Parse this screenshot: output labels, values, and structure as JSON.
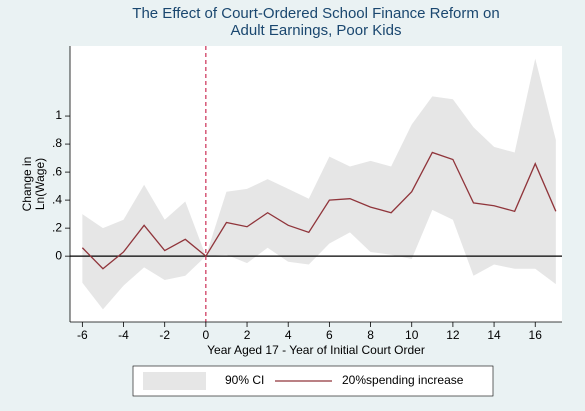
{
  "chart_data": {
    "type": "line",
    "title": [
      "The Effect of Court-Ordered School Finance Reform on",
      "Adult Earnings, Poor Kids"
    ],
    "xlabel": "Year Aged 17 - Year of Initial Court Order",
    "ylabel": [
      "Change in",
      "Ln(Wage)"
    ],
    "x": [
      -6,
      -5,
      -4,
      -3,
      -2,
      -1,
      0,
      1,
      2,
      3,
      4,
      5,
      6,
      7,
      8,
      9,
      10,
      11,
      12,
      13,
      14,
      15,
      16,
      17
    ],
    "series": [
      {
        "name": "90% CI",
        "color": "#e6e6e6",
        "upper": [
          0.3,
          0.2,
          0.26,
          0.51,
          0.26,
          0.39,
          0,
          0.46,
          0.48,
          0.55,
          0.48,
          0.41,
          0.71,
          0.64,
          0.68,
          0.64,
          0.94,
          1.14,
          1.12,
          0.92,
          0.78,
          0.74,
          1.41,
          0.83
        ],
        "lower": [
          -0.19,
          -0.38,
          -0.21,
          -0.08,
          -0.17,
          -0.14,
          0,
          0.01,
          -0.05,
          0.06,
          -0.04,
          -0.06,
          0.09,
          0.17,
          0.03,
          0.01,
          -0.02,
          0.33,
          0.26,
          -0.14,
          -0.06,
          -0.09,
          -0.09,
          -0.2
        ]
      },
      {
        "name": "20%spending increase",
        "color": "#90353b",
        "values": [
          0.06,
          -0.09,
          0.03,
          0.22,
          0.04,
          0.12,
          0,
          0.24,
          0.21,
          0.31,
          0.22,
          0.17,
          0.4,
          0.41,
          0.35,
          0.31,
          0.46,
          0.74,
          0.69,
          0.38,
          0.36,
          0.32,
          0.66,
          0.32
        ]
      }
    ],
    "xlim": [
      -6.6,
      17.3
    ],
    "ylim": [
      -0.47,
      1.5
    ],
    "xticks": [
      -6,
      -4,
      -2,
      0,
      2,
      4,
      6,
      8,
      10,
      12,
      14,
      16
    ],
    "yticks": [
      0,
      {
        "value": 0.2,
        "label": ".2"
      },
      {
        "value": 0.4,
        "label": ".4"
      },
      {
        "value": 0.6,
        "label": ".6"
      },
      {
        "value": 0.8,
        "label": ".8"
      },
      1
    ],
    "vline": 0,
    "vline_color": "#c10534",
    "hline": 0
  }
}
